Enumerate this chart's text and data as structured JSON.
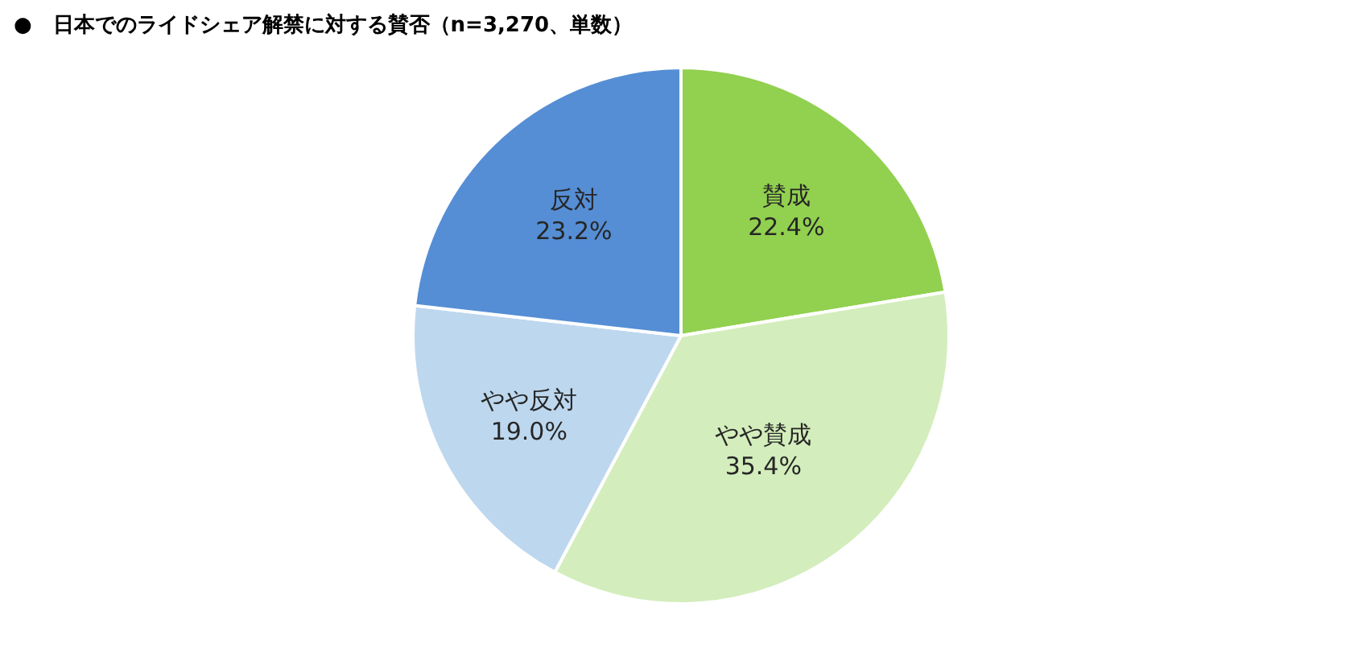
{
  "chart_data": {
    "type": "pie",
    "title": "●　日本でのライドシェア解禁に対する賛否（n=3,270、単数）",
    "categories": [
      "賛成",
      "やや賛成",
      "やや反対",
      "反対"
    ],
    "values": [
      22.4,
      35.4,
      19.0,
      23.2
    ],
    "value_labels": [
      "22.4%",
      "35.4%",
      "19.0%",
      "23.2%"
    ],
    "colors": [
      "#92d050",
      "#d3edbc",
      "#bdd7ee",
      "#558ed5"
    ],
    "legend": false
  }
}
